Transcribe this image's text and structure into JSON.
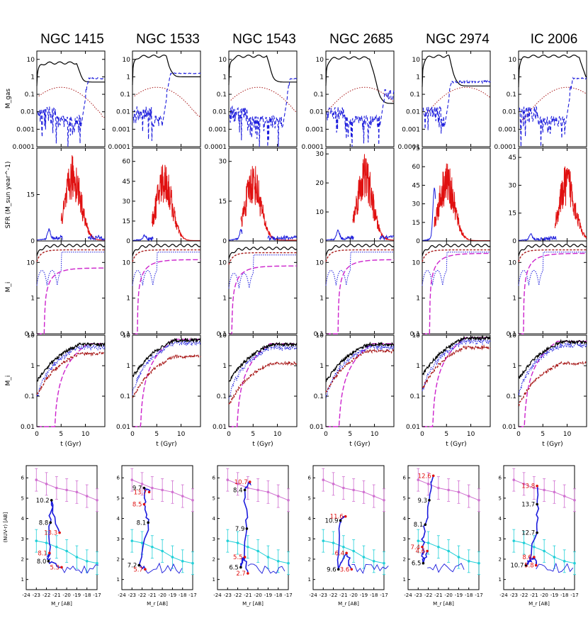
{
  "figure": {
    "galaxies": [
      "NGC 1415",
      "NGC 1533",
      "NGC 1543",
      "NGC 2685",
      "NGC 2974",
      "IC 2006"
    ],
    "colors": {
      "black": "#000000",
      "blue": "#1a1adc",
      "red": "#e01010",
      "darkred": "#a81818",
      "magenta": "#cc22cc",
      "cyan": "#22d0d8",
      "violet": "#d070d0"
    }
  },
  "chart_data": [
    {
      "type": "line",
      "panel": "gas mass",
      "ylabel": "M_gas",
      "yscale": "log",
      "ylim": [
        0.0001,
        30
      ],
      "yticks": [
        "10",
        "1",
        "0.1",
        "0.01",
        "0.001",
        "0.0001"
      ],
      "xlim": [
        0,
        14
      ],
      "series_names": [
        "total gas (black)",
        "cold gas (blue dashed)",
        "hot gas (red dotted)"
      ],
      "final_gas_values": [
        0.5,
        1,
        0.5,
        0.03,
        0.3,
        0.5
      ]
    },
    {
      "type": "line",
      "panel": "star formation rate",
      "ylabel": "SFR (M_sun year^-1)",
      "xlim": [
        0,
        14
      ],
      "ymax_per_galaxy": [
        30,
        70,
        35,
        32,
        75,
        50
      ],
      "yticks_per_galaxy": [
        [
          "0",
          "15"
        ],
        [
          "0",
          "15",
          "30",
          "45",
          "60"
        ],
        [
          "0",
          "15",
          "30"
        ],
        [
          "0",
          "10",
          "20",
          "30"
        ],
        [
          "0",
          "15",
          "30",
          "45",
          "60",
          "75"
        ],
        [
          "0",
          "15",
          "30",
          "45"
        ]
      ],
      "burst_center_gyr": [
        7.5,
        6.5,
        5,
        8,
        5,
        10
      ],
      "peak_sfr": [
        28,
        62,
        30,
        30,
        65,
        42
      ]
    },
    {
      "type": "line",
      "panel": "mass components (upper)",
      "ylabel": "M_i",
      "yscale": "log",
      "ylim": [
        0.1,
        40
      ],
      "yticks": [
        "10",
        "1",
        "0.1"
      ],
      "xlim": [
        0,
        14
      ],
      "final_values_black": [
        30,
        30,
        25,
        30,
        30,
        30
      ],
      "final_values_magenta": [
        7,
        12,
        8,
        12,
        18,
        18
      ]
    },
    {
      "type": "line",
      "panel": "mass components (lower)",
      "ylabel": "M_i",
      "yscale": "log",
      "ylim": [
        0.01,
        10
      ],
      "yticks": [
        "10",
        "1",
        "0.1",
        "0.01"
      ],
      "xlim": [
        0,
        14
      ],
      "xticks": [
        "0",
        "5",
        "10"
      ],
      "xlabel": "t (Gyr)",
      "final_values_black": [
        5,
        7,
        5,
        5,
        8,
        6
      ],
      "final_values_red": [
        2.5,
        2,
        1.2,
        3,
        4,
        1.2
      ]
    },
    {
      "type": "line",
      "panel": "colour-magnitude",
      "ylabel": "(NUV-r) [AB]",
      "xlabel": "M_r [AB]",
      "xlim": [
        -24,
        -17
      ],
      "ylim": [
        0.5,
        6.6
      ],
      "xticks": [
        "-24",
        "-23",
        "-22",
        "-21",
        "-20",
        "-19",
        "-18",
        "-17"
      ],
      "yticks": [
        "1",
        "2",
        "3",
        "4",
        "5",
        "6"
      ],
      "reference_sequences": [
        {
          "name": "red sequence",
          "x": [
            -23,
            -22,
            -21,
            -20,
            -19,
            -18,
            -17
          ],
          "y": [
            5.9,
            5.7,
            5.5,
            5.4,
            5.3,
            5.1,
            4.9
          ]
        },
        {
          "name": "blue cloud",
          "x": [
            -23,
            -22,
            -21,
            -20,
            -19,
            -18,
            -17
          ],
          "y": [
            2.9,
            2.8,
            2.6,
            2.4,
            2.1,
            1.9,
            1.8
          ]
        }
      ],
      "annotations": [
        [
          {
            "label": "10.2",
            "x": -21.5,
            "y": 4.9,
            "color": "#000000"
          },
          {
            "label": "8.8",
            "x": -21.6,
            "y": 3.8,
            "color": "#000000"
          },
          {
            "label": "13.3",
            "x": -20.7,
            "y": 3.3,
            "color": "#e01010"
          },
          {
            "label": "8.1",
            "x": -21.7,
            "y": 2.3,
            "color": "#e01010"
          },
          {
            "label": "8.0",
            "x": -21.8,
            "y": 1.9,
            "color": "#000000"
          },
          {
            "label": "5.3",
            "x": -20.5,
            "y": 1.6,
            "color": "#e01010"
          }
        ],
        [
          {
            "label": "9.7",
            "x": -21.8,
            "y": 5.5,
            "color": "#000000"
          },
          {
            "label": "13.7",
            "x": -21.3,
            "y": 5.3,
            "color": "#e01010"
          },
          {
            "label": "8.5",
            "x": -21.8,
            "y": 4.7,
            "color": "#e01010"
          },
          {
            "label": "8.1",
            "x": -21.4,
            "y": 3.8,
            "color": "#000000"
          },
          {
            "label": "7.2",
            "x": -22.3,
            "y": 1.7,
            "color": "#000000"
          },
          {
            "label": "5.7",
            "x": -21.7,
            "y": 1.5,
            "color": "#e01010"
          }
        ],
        [
          {
            "label": "10.7",
            "x": -20.8,
            "y": 5.8,
            "color": "#e01010"
          },
          {
            "label": "8.4",
            "x": -21.3,
            "y": 5.4,
            "color": "#000000"
          },
          {
            "label": "7.9",
            "x": -21.1,
            "y": 3.5,
            "color": "#000000"
          },
          {
            "label": "5.5",
            "x": -21.3,
            "y": 2.1,
            "color": "#e01010"
          },
          {
            "label": "6.5",
            "x": -21.7,
            "y": 1.6,
            "color": "#000000"
          },
          {
            "label": "2.7",
            "x": -21.0,
            "y": 1.3,
            "color": "#e01010"
          }
        ],
        [
          {
            "label": "10.9",
            "x": -21.3,
            "y": 3.9,
            "color": "#000000"
          },
          {
            "label": "11.6",
            "x": -20.8,
            "y": 4.1,
            "color": "#e01010"
          },
          {
            "label": "6.4",
            "x": -20.7,
            "y": 2.3,
            "color": "#e01010"
          },
          {
            "label": "9.6",
            "x": -21.5,
            "y": 1.5,
            "color": "#000000"
          },
          {
            "label": "3.6",
            "x": -20.2,
            "y": 1.5,
            "color": "#e01010"
          }
        ],
        [
          {
            "label": "12.6",
            "x": -21.5,
            "y": 6.1,
            "color": "#e01010"
          },
          {
            "label": "9.3",
            "x": -21.9,
            "y": 4.9,
            "color": "#000000"
          },
          {
            "label": "8.1",
            "x": -22.3,
            "y": 3.7,
            "color": "#000000"
          },
          {
            "label": "7.4",
            "x": -22.6,
            "y": 2.6,
            "color": "#e01010"
          },
          {
            "label": "4.6",
            "x": -22.1,
            "y": 2.4,
            "color": "#e01010"
          },
          {
            "label": "6.5",
            "x": -22.5,
            "y": 1.8,
            "color": "#000000"
          }
        ],
        [
          {
            "label": "13.8",
            "x": -20.7,
            "y": 5.6,
            "color": "#e01010"
          },
          {
            "label": "13.7",
            "x": -20.7,
            "y": 4.7,
            "color": "#000000"
          },
          {
            "label": "12.7",
            "x": -20.7,
            "y": 3.3,
            "color": "#000000"
          },
          {
            "label": "8.6",
            "x": -21.0,
            "y": 2.1,
            "color": "#e01010"
          },
          {
            "label": "10.7",
            "x": -21.8,
            "y": 1.7,
            "color": "#000000"
          },
          {
            "label": "5.8",
            "x": -20.8,
            "y": 1.7,
            "color": "#e01010"
          }
        ]
      ]
    }
  ]
}
